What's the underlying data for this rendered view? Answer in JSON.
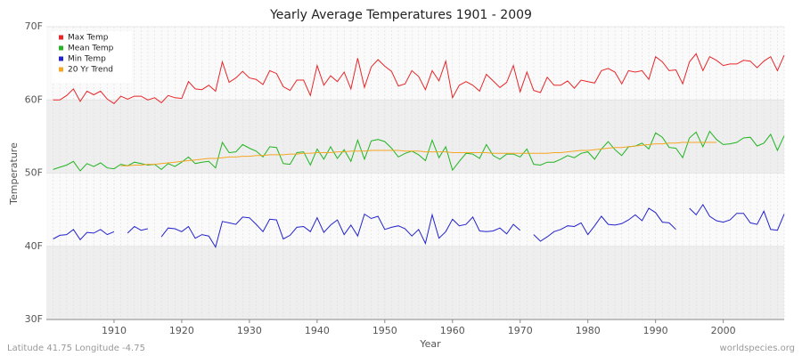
{
  "chart_data": {
    "type": "line",
    "title": "Yearly Average Temperatures 1901 - 2009",
    "xlabel": "Year",
    "ylabel": "Temperature",
    "footer_left": "Latitude 41.75 Longitude -4.75",
    "footer_right": "worldspecies.org",
    "legend": "top-left",
    "grid": true,
    "xlim": [
      1900,
      2009
    ],
    "xticks": [
      1910,
      1920,
      1930,
      1940,
      1950,
      1960,
      1970,
      1980,
      1990,
      2000
    ],
    "ylim": [
      30,
      70
    ],
    "yticks": [
      {
        "value": 30,
        "label": "30F"
      },
      {
        "value": 40,
        "label": "40F"
      },
      {
        "value": 50,
        "label": "50F"
      },
      {
        "value": 60,
        "label": "60F"
      },
      {
        "value": 70,
        "label": "70F"
      }
    ],
    "x": [
      1901,
      1902,
      1903,
      1904,
      1905,
      1906,
      1907,
      1908,
      1909,
      1910,
      1911,
      1912,
      1913,
      1914,
      1915,
      1916,
      1917,
      1918,
      1919,
      1920,
      1921,
      1922,
      1923,
      1924,
      1925,
      1926,
      1927,
      1928,
      1929,
      1930,
      1931,
      1932,
      1933,
      1934,
      1935,
      1936,
      1937,
      1938,
      1939,
      1940,
      1941,
      1942,
      1943,
      1944,
      1945,
      1946,
      1947,
      1948,
      1949,
      1950,
      1951,
      1952,
      1953,
      1954,
      1955,
      1956,
      1957,
      1958,
      1959,
      1960,
      1961,
      1962,
      1963,
      1964,
      1965,
      1966,
      1967,
      1968,
      1969,
      1970,
      1971,
      1972,
      1973,
      1974,
      1975,
      1976,
      1977,
      1978,
      1979,
      1980,
      1981,
      1982,
      1983,
      1984,
      1985,
      1986,
      1987,
      1988,
      1989,
      1990,
      1991,
      1992,
      1993,
      1994,
      1995,
      1996,
      1997,
      1998,
      1999,
      2000,
      2001,
      2002,
      2003,
      2004,
      2005,
      2006,
      2007,
      2008,
      2009
    ],
    "series": [
      {
        "name": "Max Temp",
        "color": "#e8262a",
        "values": [
          60.0,
          60.0,
          60.6,
          61.5,
          59.8,
          61.2,
          60.7,
          61.2,
          60.1,
          59.5,
          60.5,
          60.1,
          60.5,
          60.5,
          60.0,
          60.3,
          59.6,
          60.6,
          60.3,
          60.2,
          62.5,
          61.5,
          61.4,
          62.0,
          61.2,
          65.2,
          62.4,
          63.0,
          63.9,
          63.0,
          62.8,
          62.1,
          64.0,
          63.6,
          61.8,
          61.3,
          62.7,
          62.7,
          60.6,
          64.7,
          62.0,
          63.3,
          62.5,
          63.8,
          61.5,
          65.7,
          61.7,
          64.5,
          65.5,
          64.6,
          63.9,
          61.9,
          62.2,
          64.0,
          63.2,
          61.4,
          64.0,
          62.6,
          65.3,
          60.3,
          62.0,
          62.5,
          62.0,
          61.2,
          63.5,
          62.6,
          61.7,
          62.4,
          64.7,
          61.1,
          63.8,
          61.3,
          61.0,
          63.1,
          62.0,
          62.0,
          62.6,
          61.6,
          62.7,
          62.5,
          62.3,
          64.0,
          64.3,
          63.8,
          62.2,
          64.0,
          63.8,
          64.0,
          62.8,
          65.9,
          65.2,
          64.0,
          64.1,
          62.2,
          65.2,
          66.3,
          64.0,
          65.9,
          65.4,
          64.7,
          64.9,
          64.9,
          65.4,
          65.3,
          64.4,
          65.3,
          65.9,
          64.0,
          66.1
        ]
      },
      {
        "name": "Mean Temp",
        "color": "#22b422",
        "values": [
          50.5,
          50.8,
          51.1,
          51.6,
          50.3,
          51.3,
          50.9,
          51.4,
          50.7,
          50.6,
          51.2,
          51.0,
          51.5,
          51.3,
          51.1,
          51.2,
          50.5,
          51.3,
          50.9,
          51.5,
          52.2,
          51.3,
          51.5,
          51.6,
          50.7,
          54.2,
          52.8,
          52.9,
          53.9,
          53.4,
          53.0,
          52.2,
          53.6,
          53.5,
          51.3,
          51.2,
          52.8,
          52.9,
          51.1,
          53.3,
          51.9,
          53.6,
          52.0,
          53.2,
          51.6,
          54.5,
          51.9,
          54.4,
          54.6,
          54.3,
          53.4,
          52.2,
          52.7,
          53.0,
          52.5,
          51.7,
          54.5,
          52.1,
          53.6,
          50.4,
          51.6,
          52.7,
          52.6,
          52.0,
          53.9,
          52.4,
          51.9,
          52.6,
          52.6,
          52.2,
          53.3,
          51.2,
          51.1,
          51.5,
          51.5,
          51.9,
          52.4,
          52.1,
          52.7,
          52.9,
          51.9,
          53.3,
          54.3,
          53.2,
          52.4,
          53.6,
          53.7,
          54.1,
          53.3,
          55.5,
          54.9,
          53.5,
          53.4,
          52.1,
          54.8,
          55.6,
          53.6,
          55.7,
          54.6,
          53.9,
          54.0,
          54.2,
          54.8,
          54.9,
          53.7,
          54.1,
          55.3,
          53.1,
          55.1
        ]
      },
      {
        "name": "Min Temp",
        "color": "#2323cc",
        "values": [
          41.0,
          41.5,
          41.6,
          42.3,
          40.9,
          41.9,
          41.8,
          42.3,
          41.6,
          42.0,
          null,
          41.8,
          42.7,
          42.2,
          42.4,
          null,
          41.3,
          42.5,
          42.4,
          42.0,
          42.7,
          41.1,
          41.6,
          41.4,
          39.9,
          43.4,
          43.2,
          43.0,
          44.0,
          43.9,
          43.0,
          42.0,
          43.7,
          43.6,
          41.0,
          41.5,
          42.6,
          42.7,
          42.0,
          43.9,
          41.9,
          42.9,
          43.6,
          41.6,
          42.9,
          41.4,
          44.4,
          43.8,
          44.1,
          42.3,
          42.6,
          42.8,
          42.4,
          41.4,
          42.3,
          40.4,
          44.3,
          41.1,
          42.0,
          43.7,
          42.8,
          43.0,
          44.0,
          42.1,
          42.0,
          42.1,
          42.5,
          41.7,
          43.0,
          42.2,
          null,
          41.6,
          40.7,
          41.3,
          42.0,
          42.3,
          42.8,
          42.7,
          43.2,
          41.6,
          42.8,
          44.1,
          43.0,
          42.9,
          43.1,
          43.6,
          44.3,
          43.5,
          45.2,
          44.6,
          43.3,
          43.2,
          42.3,
          null,
          45.2,
          44.3,
          45.7,
          44.1,
          43.5,
          43.3,
          43.6,
          44.5,
          44.5,
          43.2,
          43.0,
          44.8,
          42.3,
          42.2,
          44.4
        ]
      },
      {
        "name": "20 Yr Trend",
        "color": "#f5a623",
        "values": [
          null,
          null,
          null,
          null,
          null,
          null,
          null,
          null,
          null,
          null,
          51.0,
          51.0,
          51.1,
          51.1,
          51.2,
          51.2,
          51.3,
          51.4,
          51.5,
          51.6,
          51.7,
          51.8,
          51.9,
          52.0,
          52.0,
          52.1,
          52.2,
          52.2,
          52.3,
          52.3,
          52.4,
          52.4,
          52.5,
          52.5,
          52.5,
          52.6,
          52.6,
          52.7,
          52.7,
          52.8,
          52.8,
          52.8,
          52.9,
          52.9,
          53.0,
          53.0,
          53.0,
          53.1,
          53.1,
          53.1,
          53.1,
          53.1,
          53.0,
          53.0,
          53.0,
          52.9,
          52.9,
          52.9,
          52.9,
          52.8,
          52.8,
          52.8,
          52.8,
          52.8,
          52.8,
          52.7,
          52.7,
          52.7,
          52.7,
          52.7,
          52.7,
          52.7,
          52.7,
          52.7,
          52.8,
          52.8,
          52.9,
          53.0,
          53.1,
          53.1,
          53.2,
          53.3,
          53.4,
          53.5,
          53.5,
          53.6,
          53.7,
          53.8,
          53.9,
          54.0,
          54.0,
          54.1,
          54.1,
          54.2,
          54.2,
          54.2,
          54.2,
          54.2,
          54.2,
          null,
          null,
          null,
          null,
          null,
          null,
          null,
          null,
          null,
          null
        ]
      }
    ]
  }
}
